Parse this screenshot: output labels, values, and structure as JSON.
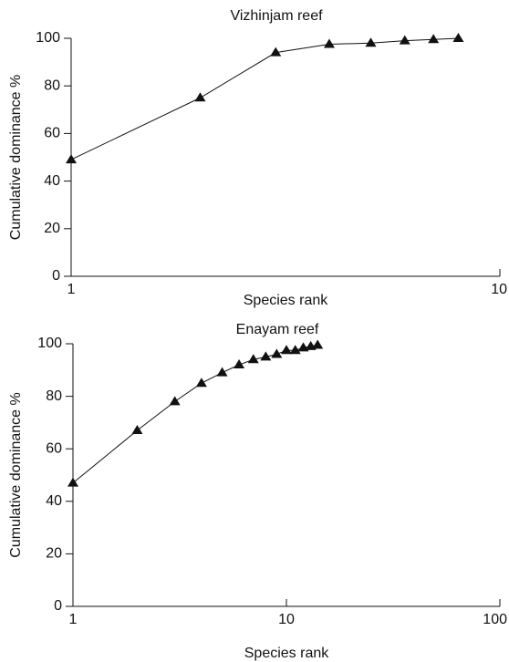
{
  "chart_data": [
    {
      "type": "line",
      "title": "Vizhinjam reef",
      "x_label": "Species rank",
      "y_label": "Cumulative dominance %",
      "x": [
        1,
        2,
        3,
        4,
        5,
        6,
        7,
        8
      ],
      "series": [
        {
          "color": "#111111",
          "values": [
            49,
            75,
            94,
            97.5,
            98,
            99,
            99.5,
            100
          ]
        }
      ],
      "xlim": [
        1,
        10
      ],
      "xticks": [
        1,
        10
      ],
      "ylim": [
        0,
        100
      ],
      "yticks": [
        0,
        20,
        40,
        60,
        80,
        100
      ],
      "x_log": true
    },
    {
      "type": "line",
      "title": "Enayam reef",
      "x_label": "Species rank",
      "y_label": "Cumulative dominance %",
      "x": [
        1,
        2,
        3,
        4,
        5,
        6,
        7,
        8,
        9,
        10,
        11,
        12,
        13,
        14
      ],
      "series": [
        {
          "color": "#111111",
          "values": [
            47,
            67,
            78,
            85,
            89,
            92,
            94,
            95,
            96,
            97.5,
            97.5,
            98.5,
            99,
            99.5
          ]
        }
      ],
      "xlim": [
        1,
        100
      ],
      "xticks": [
        1,
        10,
        100
      ],
      "ylim": [
        0,
        100
      ],
      "yticks": [
        0,
        20,
        40,
        60,
        80,
        100
      ],
      "x_log": true
    }
  ]
}
